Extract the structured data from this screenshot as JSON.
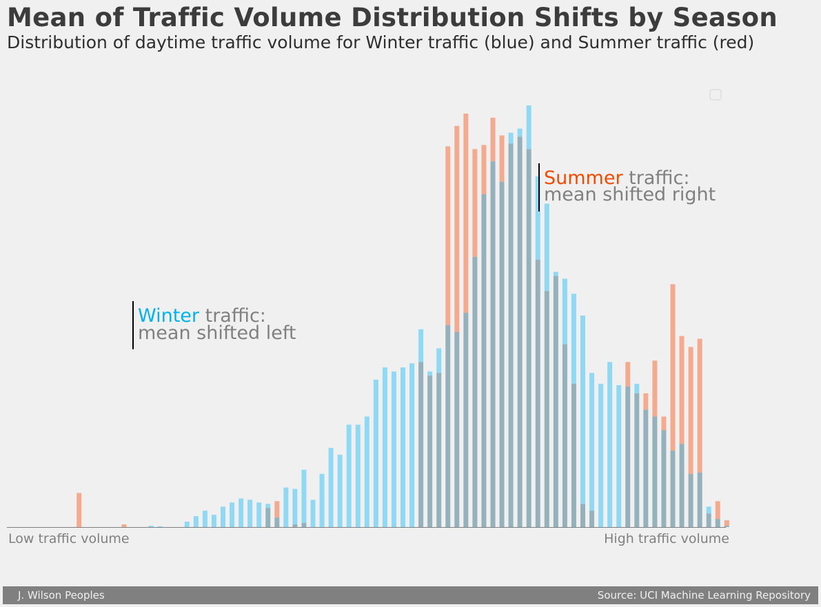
{
  "title": "Mean of Traffic Volume Distribution Shifts by Season",
  "subtitle": "Distribution of daytime traffic volume for Winter traffic (blue) and Summer traffic (red)",
  "annotations": {
    "winter_word": "Winter",
    "winter_rest": "traffic:",
    "winter_line2": "mean shifted left",
    "summer_word": "Summer",
    "summer_rest": "traffic:",
    "summer_line2": "mean shifted right"
  },
  "axis": {
    "low_label": "Low traffic volume",
    "high_label": "High traffic volume"
  },
  "footer": {
    "author": "J. Wilson Peoples",
    "source": "Source: UCI Machine Learning Repository"
  },
  "colors": {
    "winter": "#8fd9f5",
    "summer": "#f4aa8e",
    "overlap": "#95b1bc",
    "winter_text": "#00b2ef",
    "summer_text": "#f24a00",
    "muted_text": "#808080",
    "background": "#f0f0f0"
  },
  "chart_data": {
    "type": "bar",
    "bins": 80,
    "ylim": [
      0,
      620
    ],
    "grid": false,
    "legend": "top-right (empty)",
    "series": [
      {
        "name": "Winter",
        "values": [
          0,
          0,
          0,
          0,
          0,
          0,
          0,
          0,
          0,
          0,
          0,
          0,
          2,
          1,
          0,
          0,
          8,
          16,
          24,
          18,
          30,
          36,
          42,
          40,
          36,
          34,
          14,
          58,
          56,
          84,
          40,
          78,
          116,
          106,
          150,
          150,
          162,
          216,
          234,
          228,
          234,
          240,
          290,
          228,
          262,
          296,
          286,
          314,
          396,
          488,
          536,
          506,
          578,
          584,
          618,
          514,
          474,
          374,
          364,
          342,
          310,
          226,
          210,
          242,
          208,
          206,
          210,
          172,
          162,
          142,
          112,
          122,
          78,
          80,
          30,
          12,
          2,
          0,
          0,
          0
        ]
      },
      {
        "name": "Summer",
        "values": [
          0,
          0,
          0,
          0,
          50,
          0,
          0,
          0,
          0,
          4,
          0,
          0,
          0,
          0,
          0,
          0,
          0,
          0,
          0,
          0,
          0,
          0,
          0,
          0,
          0,
          28,
          38,
          0,
          4,
          6,
          0,
          0,
          0,
          0,
          0,
          0,
          0,
          0,
          0,
          0,
          0,
          0,
          242,
          222,
          226,
          558,
          588,
          606,
          554,
          560,
          600,
          574,
          562,
          572,
          554,
          392,
          346,
          368,
          268,
          210,
          34,
          24,
          0,
          0,
          0,
          242,
          196,
          196,
          244,
          162,
          356,
          280,
          264,
          276,
          20,
          38,
          10,
          0,
          0,
          0
        ]
      }
    ]
  }
}
